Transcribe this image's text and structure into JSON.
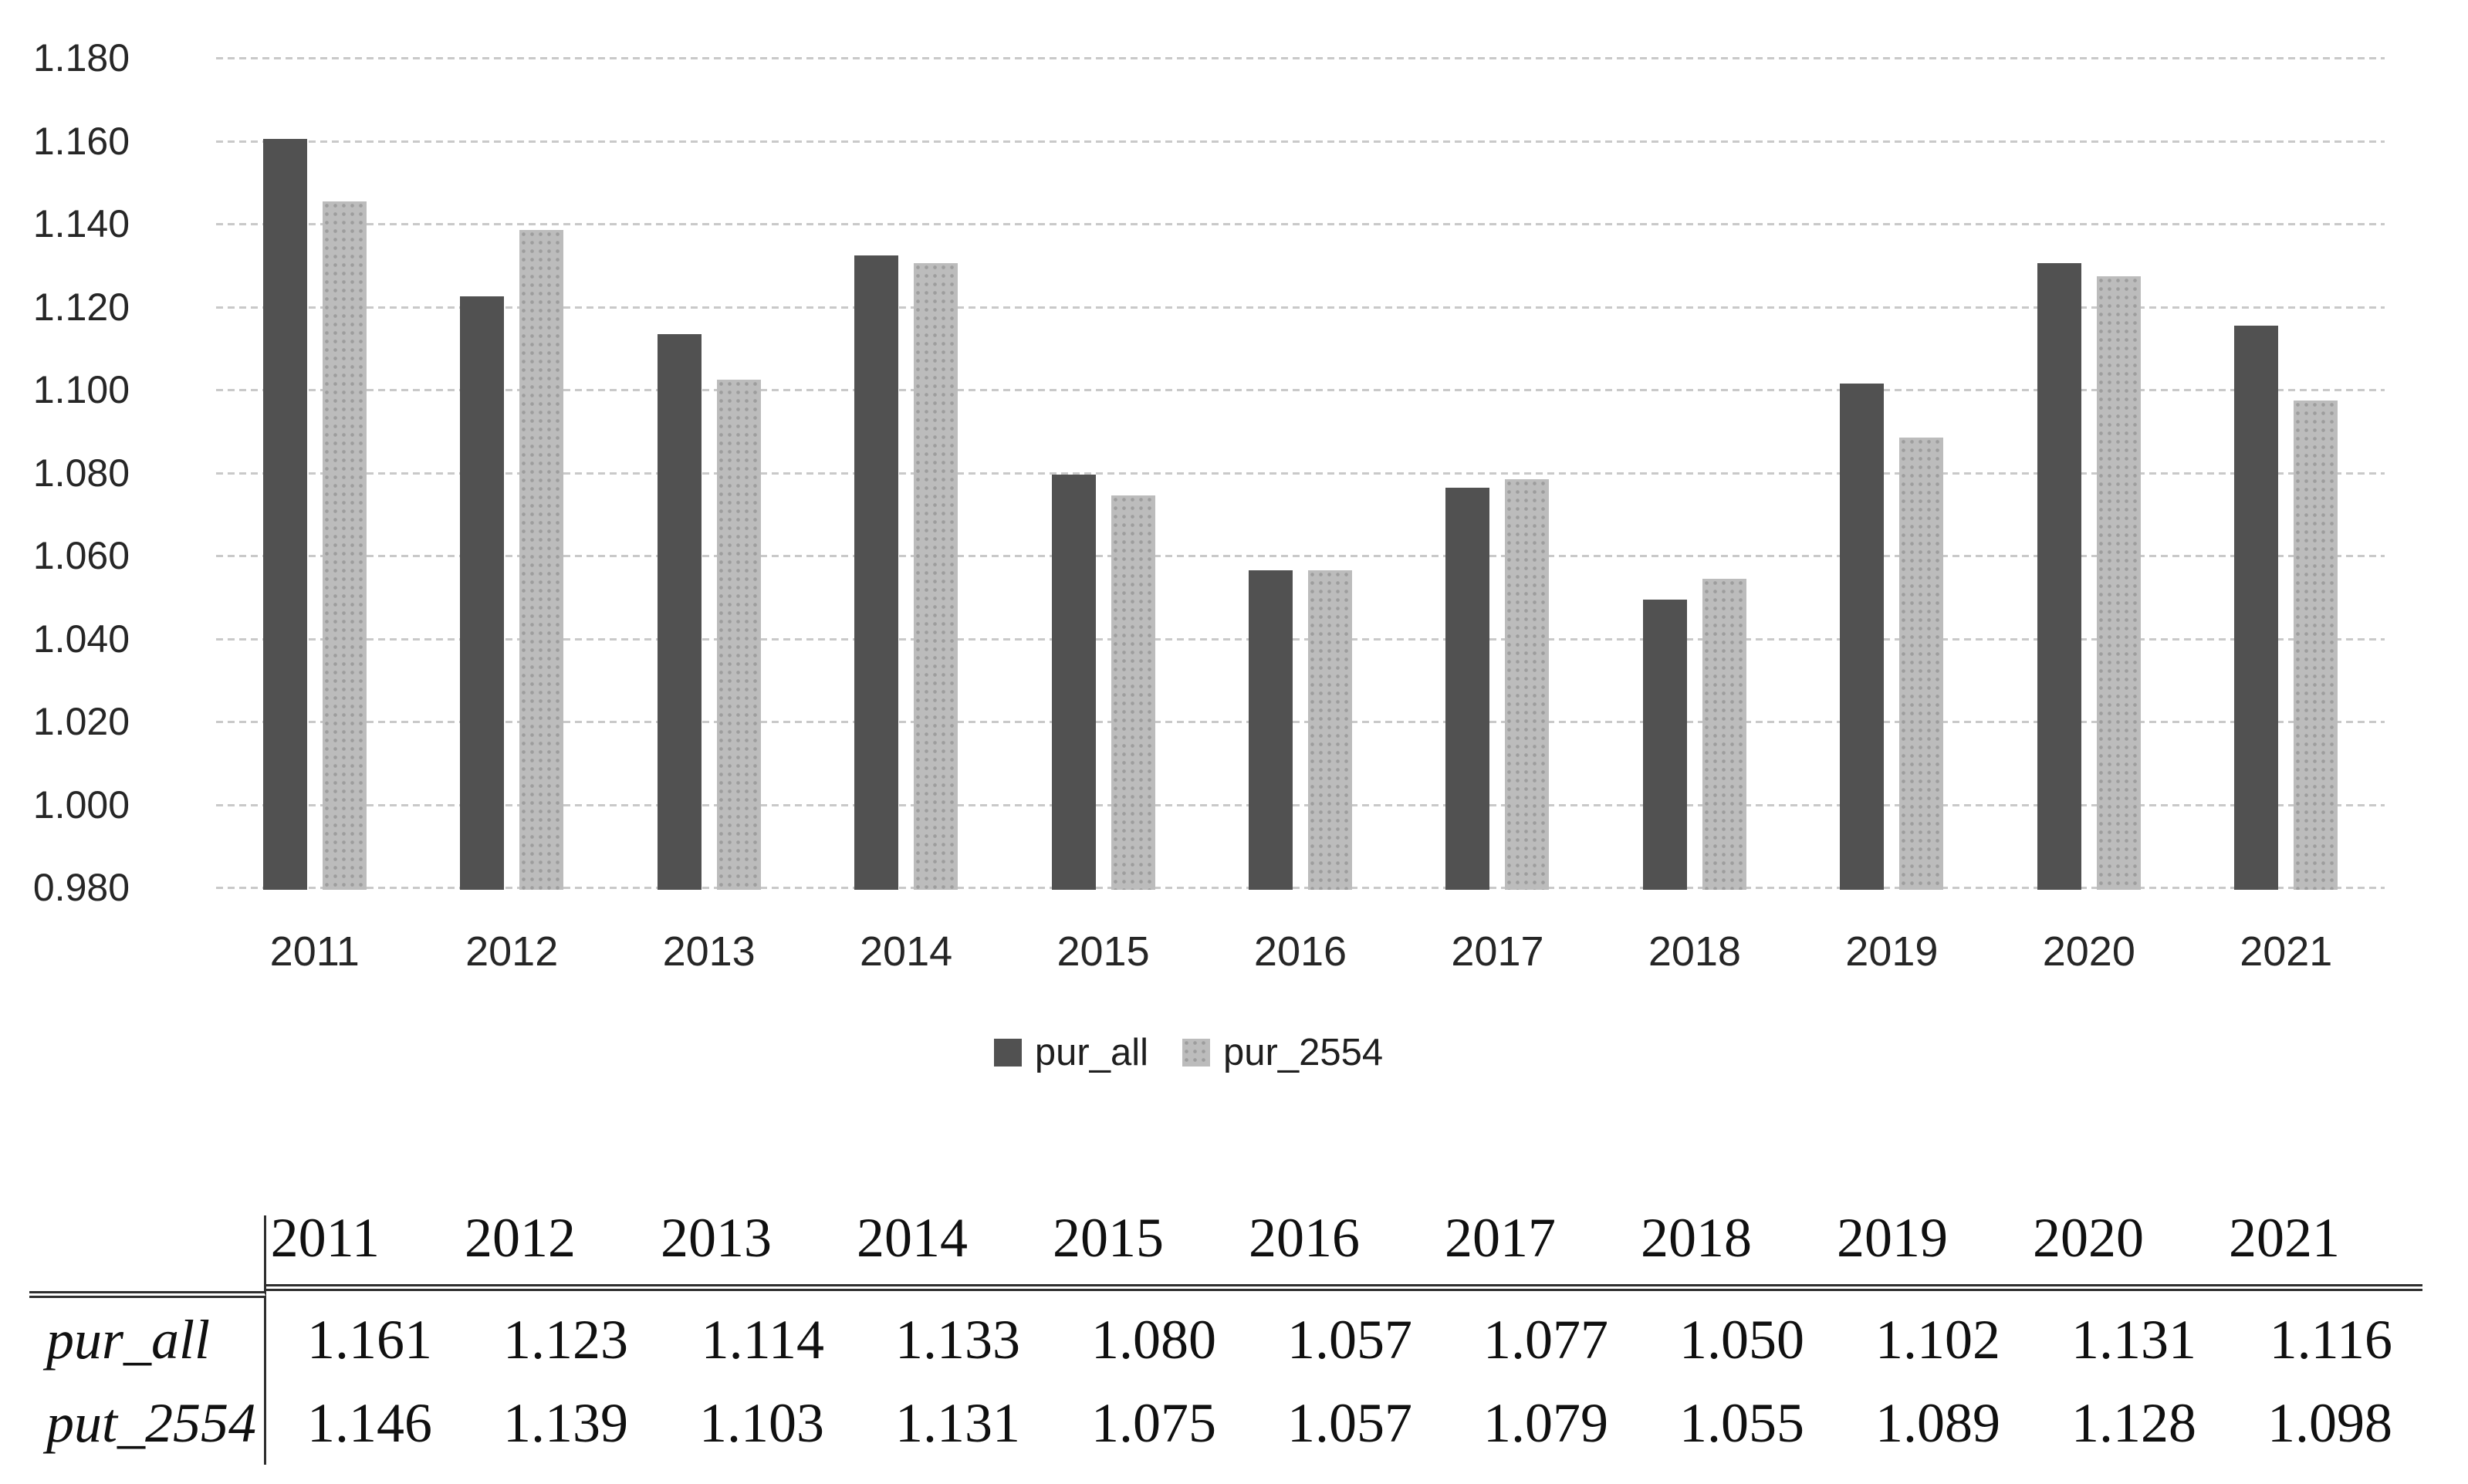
{
  "chart_data": {
    "type": "bar",
    "title": "",
    "xlabel": "",
    "ylabel": "",
    "categories": [
      "2011",
      "2012",
      "2013",
      "2014",
      "2015",
      "2016",
      "2017",
      "2018",
      "2019",
      "2020",
      "2021"
    ],
    "series": [
      {
        "name": "pur_all",
        "color": "#515151",
        "values": [
          1.161,
          1.123,
          1.114,
          1.133,
          1.08,
          1.057,
          1.077,
          1.05,
          1.102,
          1.131,
          1.116
        ]
      },
      {
        "name": "pur_2554",
        "color": "#bcbcbc",
        "values": [
          1.146,
          1.139,
          1.103,
          1.131,
          1.075,
          1.057,
          1.079,
          1.055,
          1.089,
          1.128,
          1.098
        ]
      }
    ],
    "ylim": [
      0.98,
      1.18
    ],
    "ytick_step": 0.02,
    "ytick_labels": [
      "1.180",
      "1.160",
      "1.140",
      "1.120",
      "1.100",
      "1.080",
      "1.060",
      "1.040",
      "1.020",
      "1.000",
      "0.980"
    ],
    "grid": "horizontal-dotted",
    "gridline_color": "#c9c9c9",
    "legend_position": "bottom-center"
  },
  "table": {
    "columns": [
      "2011",
      "2012",
      "2013",
      "2014",
      "2015",
      "2016",
      "2017",
      "2018",
      "2019",
      "2020",
      "2021"
    ],
    "rows": [
      {
        "label": "pur_all",
        "values": [
          "1.161",
          "1.123",
          "1.114",
          "1.133",
          "1.080",
          "1.057",
          "1.077",
          "1.050",
          "1.102",
          "1.131",
          "1.116"
        ]
      },
      {
        "label": "put_2554",
        "values": [
          "1.146",
          "1.139",
          "1.103",
          "1.131",
          "1.075",
          "1.057",
          "1.079",
          "1.055",
          "1.089",
          "1.128",
          "1.098"
        ]
      }
    ]
  },
  "colors": {
    "bar_dark": "#515151",
    "bar_light": "#bcbcbc",
    "gridline": "#c9c9c9",
    "chart_text": "#262626",
    "table_text": "#101010",
    "table_line": "#2e2e2e"
  }
}
